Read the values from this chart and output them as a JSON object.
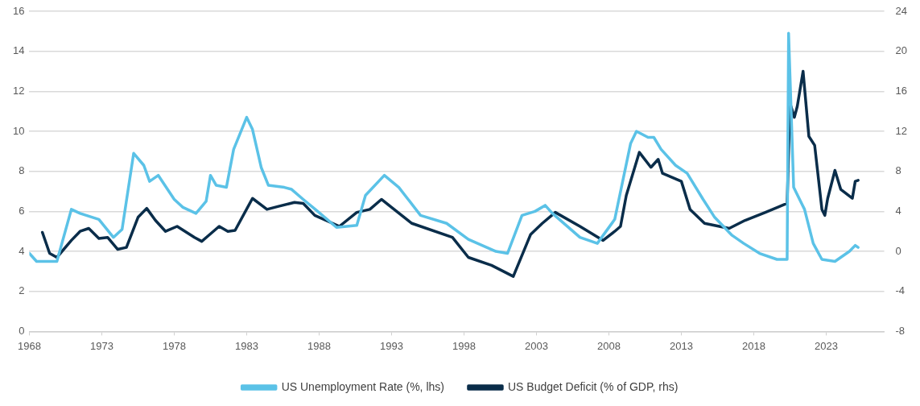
{
  "chart_data": {
    "type": "line",
    "xlim": [
      1968,
      2027
    ],
    "xticks": [
      1968,
      1973,
      1978,
      1983,
      1988,
      1993,
      1998,
      2003,
      2008,
      2013,
      2018,
      2023
    ],
    "ylim": [
      0,
      16
    ],
    "yticks": [
      0,
      2,
      4,
      6,
      8,
      10,
      12,
      14,
      16
    ],
    "y2lim": [
      -8,
      24
    ],
    "y2ticks": [
      -8,
      -4,
      0,
      4,
      8,
      12,
      16,
      20,
      24
    ],
    "grid": "y",
    "legend": "bottom",
    "marker": "none",
    "line_style": "solid",
    "series": [
      {
        "name": "US Unemployment Rate (%, lhs)",
        "color": "#5bc2e7",
        "x": [
          1968,
          1968.5,
          1969.9,
          1970.9,
          1971.5,
          1972.8,
          1973.8,
          1974.4,
          1975.2,
          1975.9,
          1976.3,
          1976.9,
          1978,
          1978.6,
          1979.5,
          1980.2,
          1980.5,
          1980.9,
          1981.6,
          1982.1,
          1983,
          1983.4,
          1984,
          1984.5,
          1985.6,
          1986.1,
          1986.9,
          1987.9,
          1989.2,
          1990.6,
          1991.2,
          1992.5,
          1993.5,
          1995,
          1996.8,
          1998.3,
          2000.2,
          2001,
          2002,
          2002.9,
          2003.6,
          2004.1,
          2006,
          2007.2,
          2008.4,
          2009.5,
          2009.9,
          2010.7,
          2011.1,
          2011.6,
          2012.6,
          2013.4,
          2014.5,
          2015.3,
          2016.5,
          2017.3,
          2018.4,
          2019.6,
          2020.3,
          2020.4,
          2020.75,
          2021.5,
          2022.1,
          2022.7,
          2023.6,
          2024.6,
          2025,
          2025.2
        ],
        "values": [
          3.9,
          3.5,
          3.5,
          6.1,
          5.9,
          5.6,
          4.7,
          5.1,
          8.9,
          8.3,
          7.5,
          7.8,
          6.6,
          6.2,
          5.9,
          6.5,
          7.8,
          7.3,
          7.2,
          9.1,
          10.7,
          10.1,
          8.2,
          7.3,
          7.2,
          7.1,
          6.6,
          6.0,
          5.2,
          5.3,
          6.8,
          7.8,
          7.2,
          5.8,
          5.4,
          4.6,
          4.0,
          3.9,
          5.8,
          6.0,
          6.3,
          5.9,
          4.7,
          4.4,
          5.6,
          9.4,
          10.0,
          9.7,
          9.7,
          9.1,
          8.3,
          7.9,
          6.6,
          5.7,
          4.8,
          4.4,
          3.9,
          3.6,
          3.6,
          14.9,
          7.2,
          6.1,
          4.4,
          3.6,
          3.5,
          4.0,
          4.3,
          4.2
        ]
      },
      {
        "name": "US Budget Deficit (% of GDP, rhs)",
        "color": "#0a2d4a",
        "axis": "y2",
        "x": [
          1968.9,
          1969.4,
          1969.9,
          1970.9,
          1971.5,
          1972.1,
          1972.8,
          1973.4,
          1974.1,
          1974.7,
          1975.5,
          1976.1,
          1976.7,
          1977.4,
          1978.2,
          1979.4,
          1979.9,
          1981.1,
          1981.7,
          1982.2,
          1983.4,
          1984.4,
          1985.2,
          1986.3,
          1986.9,
          1987.7,
          1989.4,
          1990.6,
          1991.5,
          1992.3,
          1994.4,
          1997.2,
          1998.3,
          1999.9,
          2001.4,
          2002.6,
          2003.4,
          2004.3,
          2006,
          2007.6,
          2008.4,
          2008.8,
          2009.2,
          2010.1,
          2010.9,
          2011.4,
          2011.7,
          2013,
          2013.6,
          2014.6,
          2016.3,
          2017.4,
          2018.8,
          2020.3,
          2020.5,
          2020.8,
          2021,
          2021.4,
          2021.8,
          2022.2,
          2022.7,
          2022.9,
          2023.1,
          2023.6,
          2024,
          2024.8,
          2025,
          2025.2
        ],
        "values": [
          1.9,
          -0.2,
          -0.6,
          1.1,
          2.0,
          2.3,
          1.3,
          1.4,
          0.2,
          0.4,
          3.4,
          4.3,
          3.1,
          2.0,
          2.5,
          1.4,
          1.0,
          2.5,
          2.0,
          2.1,
          5.3,
          4.2,
          4.5,
          4.9,
          4.8,
          3.6,
          2.5,
          3.9,
          4.2,
          5.2,
          2.8,
          1.4,
          -0.6,
          -1.4,
          -2.5,
          1.7,
          2.8,
          3.9,
          2.5,
          1.1,
          2.0,
          2.5,
          5.6,
          9.9,
          8.4,
          9.2,
          7.8,
          7.0,
          4.2,
          2.8,
          2.3,
          3.1,
          3.9,
          4.8,
          14.8,
          13.4,
          14.5,
          18.0,
          11.5,
          10.6,
          4.2,
          3.6,
          5.3,
          8.1,
          6.2,
          5.3,
          7.0,
          7.1
        ]
      }
    ]
  }
}
